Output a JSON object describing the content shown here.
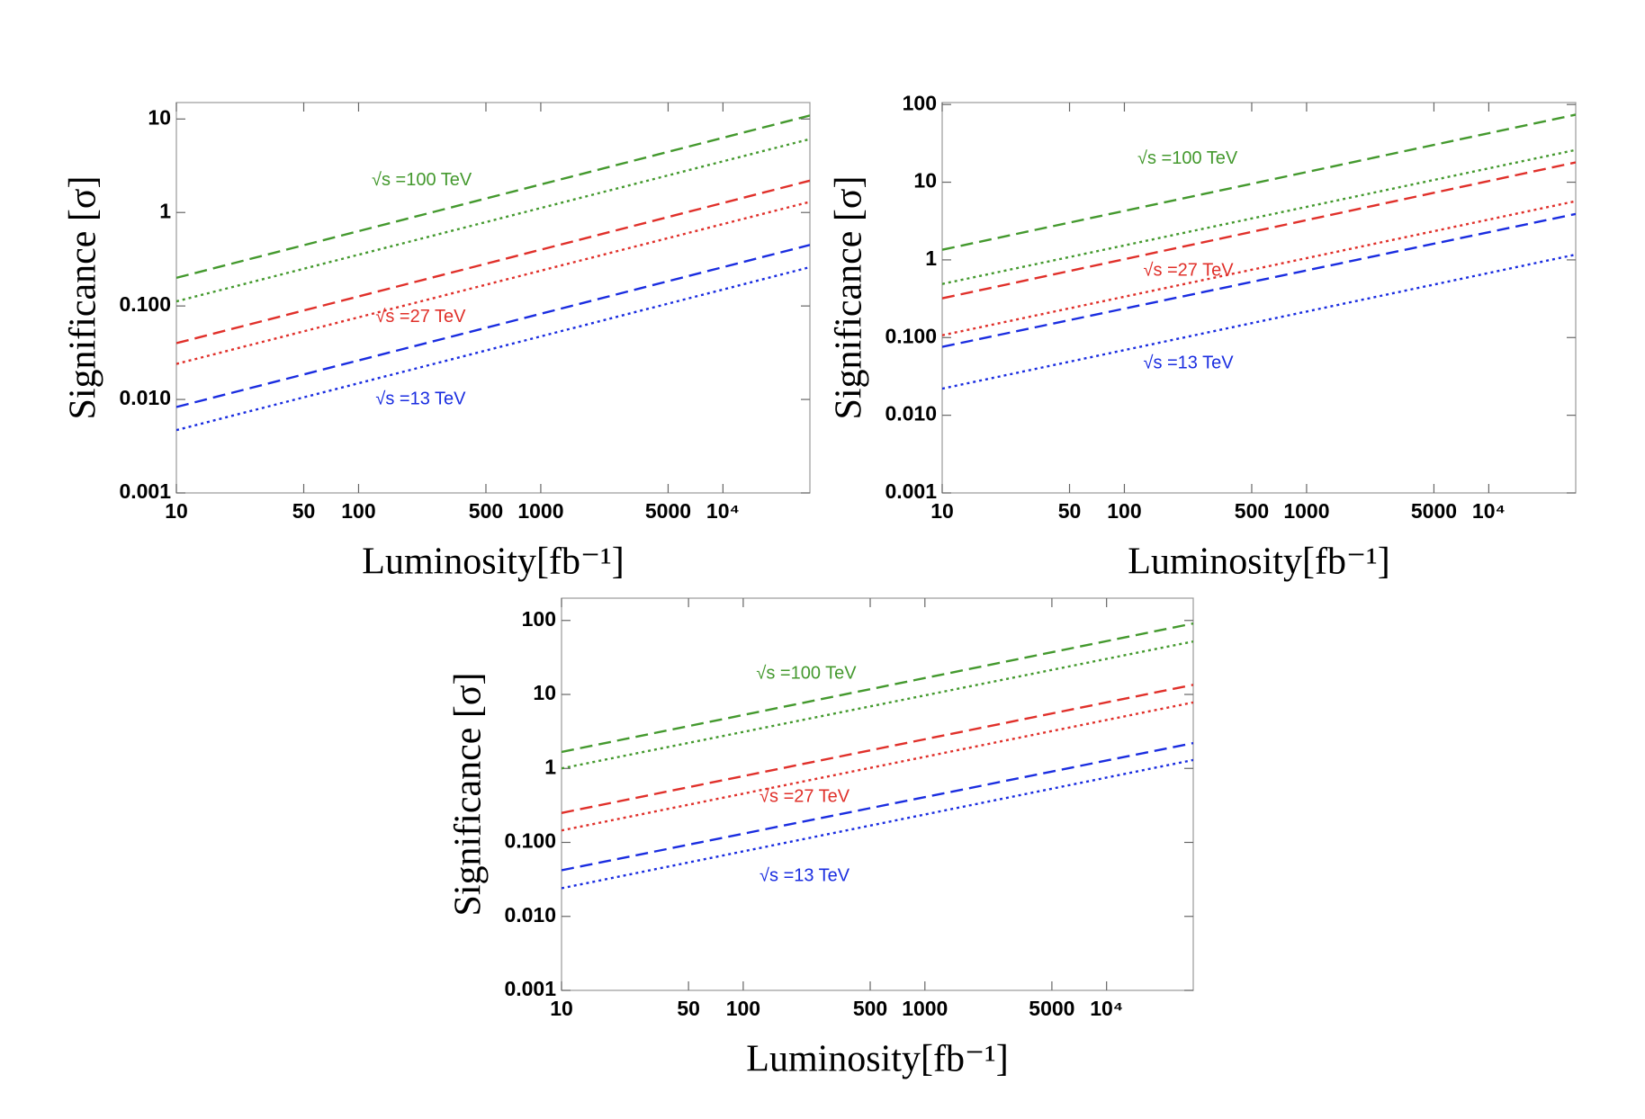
{
  "chart_data": [
    {
      "type": "line",
      "xscale": "log",
      "yscale": "log",
      "xlabel": "Luminosity[fb⁻¹]",
      "ylabel": "Significance [σ]",
      "x": [
        10,
        30000
      ],
      "xlim": [
        10,
        30000
      ],
      "xticks": [
        10,
        50,
        100,
        500,
        1000,
        5000,
        {
          "value": 10000,
          "label": "10⁴"
        }
      ],
      "ylim": [
        0.001,
        15
      ],
      "yticks": [
        0.001,
        {
          "value": 0.01,
          "label": "0.010"
        },
        {
          "value": 0.1,
          "label": "0.100"
        },
        1,
        10
      ],
      "series": [
        {
          "color": "#44992e",
          "style": "dashed",
          "values": [
            0.2,
            10.9
          ]
        },
        {
          "color": "#44992e",
          "style": "dotted",
          "values": [
            0.112,
            6.1
          ]
        },
        {
          "color": "#e0302a",
          "style": "dashed",
          "values": [
            0.04,
            2.19
          ]
        },
        {
          "color": "#e0302a",
          "style": "dotted",
          "values": [
            0.024,
            1.3
          ]
        },
        {
          "color": "#1a2de0",
          "style": "dashed",
          "values": [
            0.0083,
            0.45
          ]
        },
        {
          "color": "#1a2de0",
          "style": "dotted",
          "values": [
            0.0047,
            0.26
          ]
        }
      ],
      "annotations": [
        {
          "text": "√s =100 TeV",
          "x": 118,
          "y": 2.2,
          "color": "#44992e"
        },
        {
          "text": "√s =27 TeV",
          "x": 124,
          "y": 0.076,
          "color": "#e0302a"
        },
        {
          "text": "√s =13 TeV",
          "x": 124,
          "y": 0.01,
          "color": "#1a2de0"
        }
      ]
    },
    {
      "type": "line",
      "xscale": "log",
      "yscale": "log",
      "xlabel": "Luminosity[fb⁻¹]",
      "ylabel": "Significance [σ]",
      "x": [
        10,
        30000
      ],
      "xlim": [
        10,
        30000
      ],
      "xticks": [
        10,
        50,
        100,
        500,
        1000,
        5000,
        {
          "value": 10000,
          "label": "10⁴"
        }
      ],
      "ylim": [
        0.001,
        106
      ],
      "yticks": [
        0.001,
        {
          "value": 0.01,
          "label": "0.010"
        },
        {
          "value": 0.1,
          "label": "0.100"
        },
        1,
        10,
        100
      ],
      "series": [
        {
          "color": "#44992e",
          "style": "dashed",
          "values": [
            1.35,
            74
          ]
        },
        {
          "color": "#44992e",
          "style": "dotted",
          "values": [
            0.49,
            26
          ]
        },
        {
          "color": "#e0302a",
          "style": "dashed",
          "values": [
            0.32,
            18
          ]
        },
        {
          "color": "#e0302a",
          "style": "dotted",
          "values": [
            0.107,
            5.7
          ]
        },
        {
          "color": "#1a2de0",
          "style": "dashed",
          "values": [
            0.076,
            3.9
          ]
        },
        {
          "color": "#1a2de0",
          "style": "dotted",
          "values": [
            0.022,
            1.17
          ]
        }
      ],
      "annotations": [
        {
          "text": "√s =100 TeV",
          "x": 118,
          "y": 20,
          "color": "#44992e"
        },
        {
          "text": "√s =27 TeV",
          "x": 127,
          "y": 0.72,
          "color": "#e0302a"
        },
        {
          "text": "√s =13 TeV",
          "x": 127,
          "y": 0.046,
          "color": "#1a2de0"
        }
      ]
    },
    {
      "type": "line",
      "xscale": "log",
      "yscale": "log",
      "xlabel": "Luminosity[fb⁻¹]",
      "ylabel": "Significance [σ]",
      "x": [
        10,
        30000
      ],
      "xlim": [
        10,
        30000
      ],
      "xticks": [
        10,
        50,
        100,
        500,
        1000,
        5000,
        {
          "value": 10000,
          "label": "10⁴"
        }
      ],
      "ylim": [
        0.001,
        200
      ],
      "yticks": [
        0.001,
        {
          "value": 0.01,
          "label": "0.010"
        },
        {
          "value": 0.1,
          "label": "0.100"
        },
        1,
        10,
        100
      ],
      "series": [
        {
          "color": "#44992e",
          "style": "dashed",
          "values": [
            1.67,
            91
          ]
        },
        {
          "color": "#44992e",
          "style": "dotted",
          "values": [
            1.0,
            52
          ]
        },
        {
          "color": "#e0302a",
          "style": "dashed",
          "values": [
            0.25,
            13.5
          ]
        },
        {
          "color": "#e0302a",
          "style": "dotted",
          "values": [
            0.145,
            7.8
          ]
        },
        {
          "color": "#1a2de0",
          "style": "dashed",
          "values": [
            0.042,
            2.2
          ]
        },
        {
          "color": "#1a2de0",
          "style": "dotted",
          "values": [
            0.024,
            1.3
          ]
        }
      ],
      "annotations": [
        {
          "text": "√s =100 TeV",
          "x": 118,
          "y": 19,
          "color": "#44992e"
        },
        {
          "text": "√s =27 TeV",
          "x": 123,
          "y": 0.41,
          "color": "#e0302a"
        },
        {
          "text": "√s =13 TeV",
          "x": 123,
          "y": 0.035,
          "color": "#1a2de0"
        }
      ]
    }
  ]
}
